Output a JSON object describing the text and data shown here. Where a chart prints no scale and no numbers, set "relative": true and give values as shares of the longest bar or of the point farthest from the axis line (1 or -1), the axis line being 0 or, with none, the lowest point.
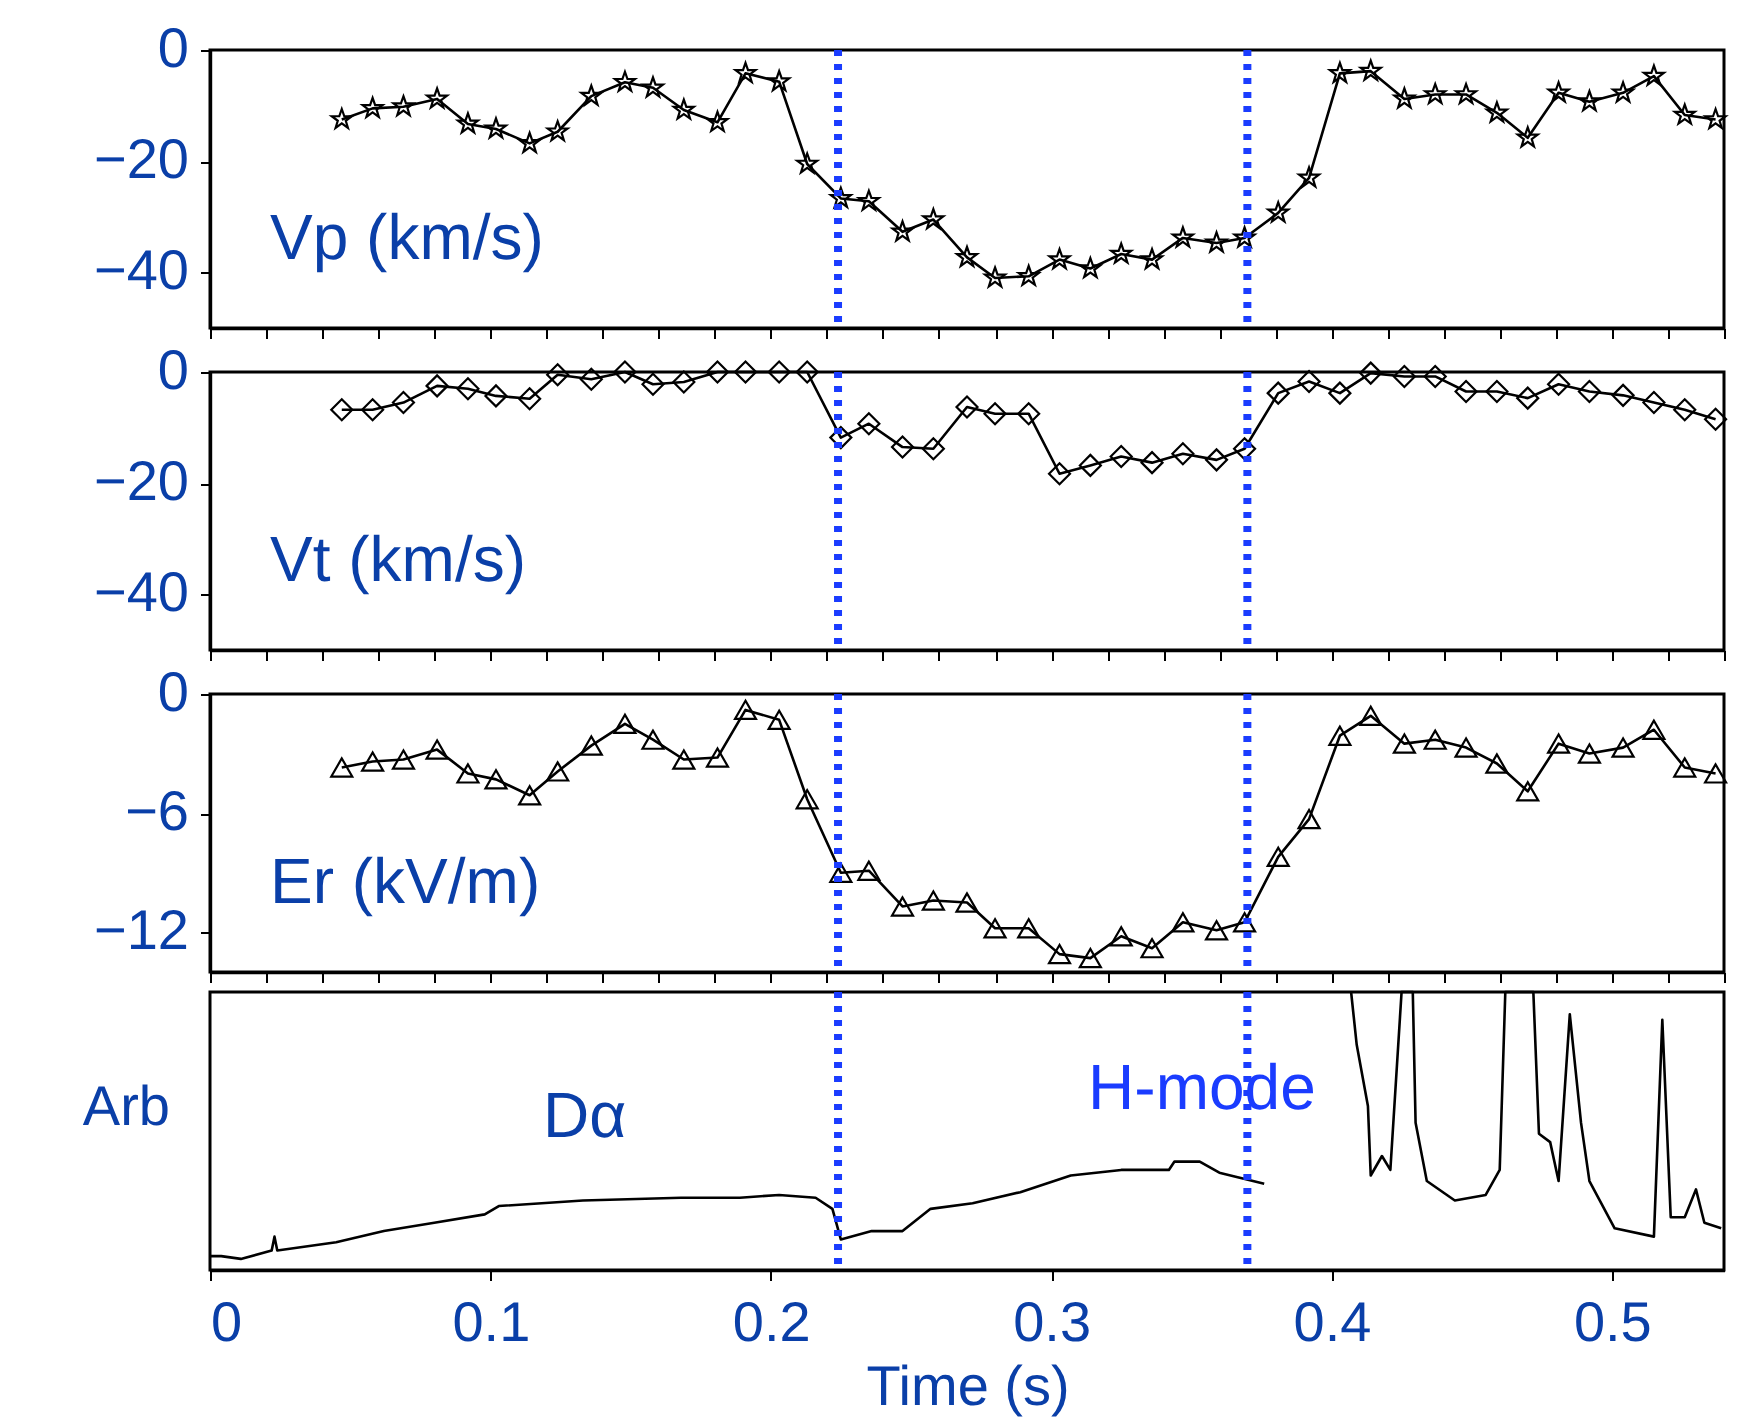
{
  "chart_data": [
    {
      "type": "line",
      "ylabel": "Vp (km/s)",
      "ylim": [
        -50,
        0
      ],
      "yticks": [
        0,
        -20,
        -40
      ],
      "xlim": [
        0,
        0.54
      ],
      "tick_labels": "y",
      "grid": false,
      "legend": false,
      "marker": "star",
      "line_style": "solid",
      "series": [
        {
          "color": "#000000",
          "x": [
            0.047,
            0.058,
            0.069,
            0.081,
            0.092,
            0.102,
            0.114,
            0.124,
            0.136,
            0.148,
            0.158,
            0.169,
            0.181,
            0.191,
            0.203,
            0.213,
            0.225,
            0.235,
            0.247,
            0.258,
            0.27,
            0.28,
            0.292,
            0.303,
            0.314,
            0.325,
            0.336,
            0.347,
            0.359,
            0.369,
            0.381,
            0.392,
            0.403,
            0.414,
            0.426,
            0.437,
            0.448,
            0.459,
            0.47,
            0.481,
            0.492,
            0.504,
            0.515,
            0.526,
            0.537
          ],
          "values": [
            -12.5,
            -10.5,
            -10.2,
            -8.8,
            -13.3,
            -14.2,
            -16.8,
            -14.7,
            -8.3,
            -5.8,
            -6.8,
            -10.8,
            -13,
            -4.2,
            -5.7,
            -20.5,
            -26.7,
            -27.2,
            -32.7,
            -30.5,
            -37.3,
            -41,
            -40.7,
            -37.7,
            -39.3,
            -36.7,
            -37.7,
            -33.8,
            -34.7,
            -33.8,
            -29.3,
            -23,
            -4.2,
            -3.8,
            -8.8,
            -8,
            -8,
            -11.3,
            -15.8,
            -7.7,
            -9.3,
            -7.7,
            -4.7,
            -11.7,
            -12.5
          ]
        }
      ],
      "ref_lines": [
        {
          "axis": "x",
          "value": 0.224,
          "color": "#1a3cff",
          "line_style": "dotted"
        },
        {
          "axis": "x",
          "value": 0.37,
          "color": "#1a3cff",
          "line_style": "dotted"
        }
      ]
    },
    {
      "type": "line",
      "ylabel": "Vt (km/s)",
      "ylim": [
        -50,
        0
      ],
      "yticks": [
        0,
        -20,
        -40
      ],
      "xlim": [
        0,
        0.54
      ],
      "tick_labels": "y",
      "grid": false,
      "legend": false,
      "marker": "diamond",
      "line_style": "solid",
      "series": [
        {
          "color": "#000000",
          "x": [
            0.047,
            0.058,
            0.069,
            0.081,
            0.092,
            0.102,
            0.114,
            0.124,
            0.136,
            0.148,
            0.158,
            0.169,
            0.181,
            0.191,
            0.203,
            0.213,
            0.225,
            0.235,
            0.247,
            0.258,
            0.27,
            0.28,
            0.292,
            0.303,
            0.314,
            0.325,
            0.336,
            0.347,
            0.359,
            0.369,
            0.381,
            0.392,
            0.403,
            0.414,
            0.426,
            0.437,
            0.448,
            0.459,
            0.47,
            0.481,
            0.492,
            0.504,
            0.515,
            0.526,
            0.537
          ],
          "values": [
            -6.8,
            -6.8,
            -5.5,
            -2.5,
            -3,
            -4.3,
            -4.8,
            -0.5,
            -1.3,
            0,
            -2.2,
            -1.8,
            0,
            0,
            0,
            0,
            -11.8,
            -9.3,
            -13.5,
            -13.8,
            -6.3,
            -7.5,
            -7.5,
            -18.3,
            -16.8,
            -15.2,
            -16.3,
            -14.7,
            -15.8,
            -13.8,
            -3.8,
            -1.7,
            -3.8,
            -0.2,
            -0.8,
            -0.8,
            -3.5,
            -3.5,
            -4.7,
            -2.2,
            -3.5,
            -4.2,
            -5.5,
            -6.8,
            -8.5
          ]
        }
      ],
      "ref_lines": [
        {
          "axis": "x",
          "value": 0.224,
          "color": "#1a3cff",
          "line_style": "dotted"
        },
        {
          "axis": "x",
          "value": 0.37,
          "color": "#1a3cff",
          "line_style": "dotted"
        }
      ]
    },
    {
      "type": "line",
      "ylabel": "Er (kV/m)",
      "ylim": [
        -14,
        0
      ],
      "yticks": [
        0,
        -6,
        -12
      ],
      "xlim": [
        0,
        0.54
      ],
      "tick_labels": "y",
      "grid": false,
      "legend": false,
      "marker": "triangle",
      "line_style": "solid",
      "series": [
        {
          "color": "#000000",
          "x": [
            0.047,
            0.058,
            0.069,
            0.081,
            0.092,
            0.102,
            0.114,
            0.124,
            0.136,
            0.148,
            0.158,
            0.169,
            0.181,
            0.191,
            0.203,
            0.213,
            0.225,
            0.235,
            0.247,
            0.258,
            0.27,
            0.28,
            0.292,
            0.303,
            0.314,
            0.325,
            0.336,
            0.347,
            0.359,
            0.369,
            0.381,
            0.392,
            0.403,
            0.414,
            0.426,
            0.437,
            0.448,
            0.459,
            0.47,
            0.481,
            0.492,
            0.504,
            0.515,
            0.526,
            0.537
          ],
          "values": [
            -3.7,
            -3.4,
            -3.3,
            -2.8,
            -4,
            -4.3,
            -5.1,
            -3.9,
            -2.6,
            -1.5,
            -2.3,
            -3.3,
            -3.2,
            -0.8,
            -1.3,
            -5.3,
            -9,
            -8.9,
            -10.7,
            -10.4,
            -10.5,
            -11.8,
            -11.8,
            -13.1,
            -13.3,
            -12.2,
            -12.8,
            -11.5,
            -11.9,
            -11.5,
            -8.2,
            -6.3,
            -2.1,
            -1.1,
            -2.5,
            -2.3,
            -2.7,
            -3.5,
            -4.9,
            -2.5,
            -3,
            -2.7,
            -1.8,
            -3.7,
            -4
          ]
        }
      ],
      "ref_lines": [
        {
          "axis": "x",
          "value": 0.224,
          "color": "#1a3cff",
          "line_style": "dotted"
        },
        {
          "axis": "x",
          "value": 0.37,
          "color": "#1a3cff",
          "line_style": "dotted"
        }
      ]
    },
    {
      "type": "line",
      "ylabel": "Arb",
      "xlabel": "Time (s)",
      "relative": true,
      "xlim": [
        0,
        0.54
      ],
      "xticks": [
        0,
        0.1,
        0.2,
        0.3,
        0.4,
        0.5
      ],
      "tick_labels": "x",
      "grid": false,
      "legend": false,
      "line_style": "solid",
      "annotations": [
        "Dα",
        "H-mode"
      ],
      "series": [
        {
          "color": "#000000",
          "x": [
            0.0,
            0.004,
            0.011,
            0.022,
            0.023,
            0.024,
            0.045,
            0.062,
            0.08,
            0.098,
            0.103,
            0.133,
            0.168,
            0.189,
            0.203,
            0.216,
            0.222,
            0.225,
            0.236,
            0.247,
            0.257,
            0.272,
            0.289,
            0.307,
            0.325,
            0.342,
            0.344,
            0.353,
            0.36,
            0.376,
            0.39,
            0.407,
            0.409,
            0.413,
            0.414,
            0.418,
            0.421,
            0.425,
            0.429,
            0.43,
            0.434,
            0.444,
            0.455,
            0.46,
            0.462,
            0.472,
            0.474,
            0.478,
            0.481,
            0.485,
            0.489,
            0.492,
            0.501,
            0.515,
            0.518,
            0.521,
            0.526,
            0.53,
            0.533,
            0.539
          ],
          "values": [
            0.05,
            0.05,
            0.04,
            0.07,
            0.12,
            0.07,
            0.1,
            0.14,
            0.17,
            0.2,
            0.23,
            0.25,
            0.26,
            0.26,
            0.27,
            0.26,
            0.22,
            0.11,
            0.14,
            0.14,
            0.22,
            0.24,
            0.28,
            0.34,
            0.36,
            0.36,
            0.39,
            0.39,
            0.35,
            0.31,
            null,
            1,
            0.81,
            0.59,
            0.34,
            0.41,
            0.36,
            1,
            1,
            0.53,
            0.32,
            0.25,
            0.27,
            0.36,
            1,
            1,
            0.49,
            0.46,
            0.32,
            0.92,
            0.53,
            0.32,
            0.15,
            0.12,
            0.9,
            0.19,
            0.19,
            0.29,
            0.17,
            0.15
          ]
        }
      ],
      "ref_lines": [
        {
          "axis": "x",
          "value": 0.224,
          "color": "#1a3cff",
          "line_style": "dotted"
        },
        {
          "axis": "x",
          "value": 0.37,
          "color": "#1a3cff",
          "line_style": "dotted"
        }
      ]
    }
  ]
}
